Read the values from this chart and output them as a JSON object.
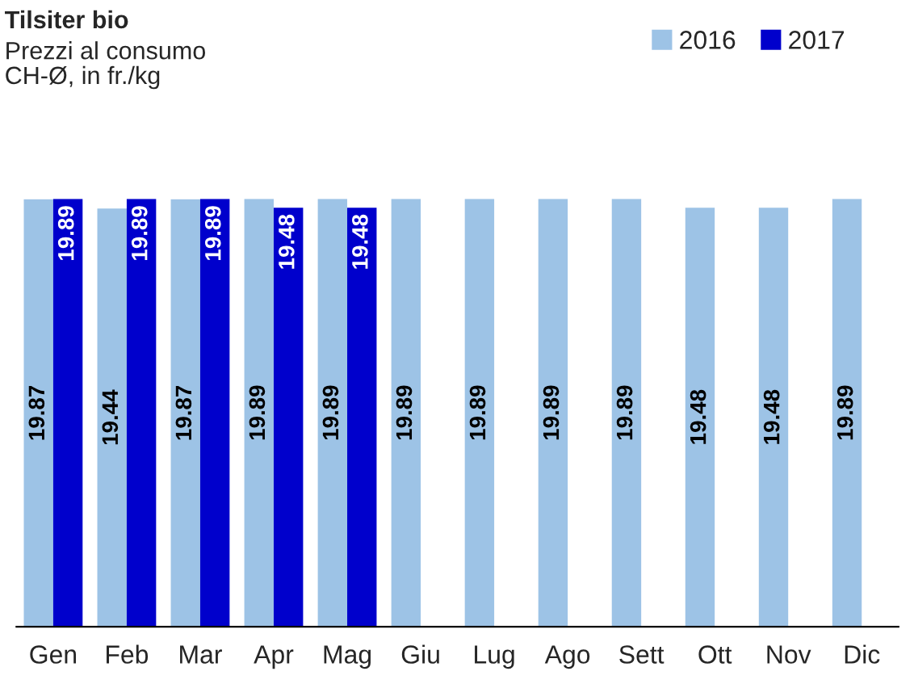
{
  "chart_data": {
    "type": "bar",
    "title": "Tilsiter bio",
    "subtitle": "Prezzi al consumo\nCH-Ø, in fr./kg",
    "categories": [
      "Gen",
      "Feb",
      "Mar",
      "Apr",
      "Mag",
      "Giu",
      "Lug",
      "Ago",
      "Sett",
      "Ott",
      "Nov",
      "Dic"
    ],
    "series": [
      {
        "name": "2016",
        "color": "#9dc3e6",
        "values": [
          19.87,
          19.44,
          19.87,
          19.89,
          19.89,
          19.89,
          19.89,
          19.89,
          19.89,
          19.48,
          19.48,
          19.89
        ]
      },
      {
        "name": "2017",
        "color": "#0000cc",
        "values": [
          19.89,
          19.89,
          19.89,
          19.48,
          19.48,
          null,
          null,
          null,
          null,
          null,
          null,
          null
        ]
      }
    ],
    "data_labels": true,
    "legend": "top right",
    "grid": false
  }
}
